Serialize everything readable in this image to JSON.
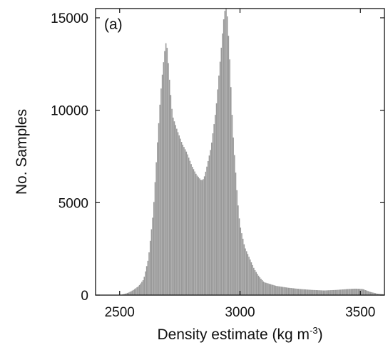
{
  "chart_data": {
    "type": "bar",
    "panel_label": "(a)",
    "xlabel": "Density estimate (kg m",
    "xlabel_sup": "-3",
    "xlabel_end": ")",
    "ylabel": "No. Samples",
    "xlim": [
      2400,
      3600
    ],
    "ylim": [
      0,
      15500
    ],
    "xticks": [
      2500,
      3000,
      3500
    ],
    "xtick_labels": [
      "2500",
      "3000",
      "3500"
    ],
    "yticks": [
      0,
      5000,
      10000,
      15000
    ],
    "ytick_labels": [
      "0",
      "5000",
      "10000",
      "15000"
    ],
    "bar_color": "#999999",
    "bin_width": 5,
    "grid": false,
    "histogram_outline": [
      [
        2500,
        0
      ],
      [
        2520,
        60
      ],
      [
        2540,
        150
      ],
      [
        2560,
        300
      ],
      [
        2580,
        500
      ],
      [
        2600,
        850
      ],
      [
        2620,
        2000
      ],
      [
        2640,
        4500
      ],
      [
        2660,
        8800
      ],
      [
        2670,
        10800
      ],
      [
        2680,
        12300
      ],
      [
        2690,
        13500
      ],
      [
        2695,
        13750
      ],
      [
        2700,
        13000
      ],
      [
        2710,
        11200
      ],
      [
        2720,
        9700
      ],
      [
        2740,
        8900
      ],
      [
        2760,
        8200
      ],
      [
        2780,
        7700
      ],
      [
        2800,
        7000
      ],
      [
        2820,
        6500
      ],
      [
        2840,
        6200
      ],
      [
        2850,
        6300
      ],
      [
        2860,
        6800
      ],
      [
        2880,
        8000
      ],
      [
        2900,
        10000
      ],
      [
        2920,
        13000
      ],
      [
        2935,
        15300
      ],
      [
        2945,
        15600
      ],
      [
        2955,
        13500
      ],
      [
        2970,
        9000
      ],
      [
        2990,
        5200
      ],
      [
        3000,
        3800
      ],
      [
        3020,
        2600
      ],
      [
        3040,
        2000
      ],
      [
        3060,
        1400
      ],
      [
        3080,
        1000
      ],
      [
        3100,
        700
      ],
      [
        3150,
        500
      ],
      [
        3200,
        400
      ],
      [
        3250,
        330
      ],
      [
        3300,
        280
      ],
      [
        3350,
        250
      ],
      [
        3400,
        280
      ],
      [
        3450,
        330
      ],
      [
        3480,
        350
      ],
      [
        3510,
        330
      ],
      [
        3540,
        180
      ],
      [
        3570,
        80
      ],
      [
        3600,
        40
      ]
    ]
  }
}
